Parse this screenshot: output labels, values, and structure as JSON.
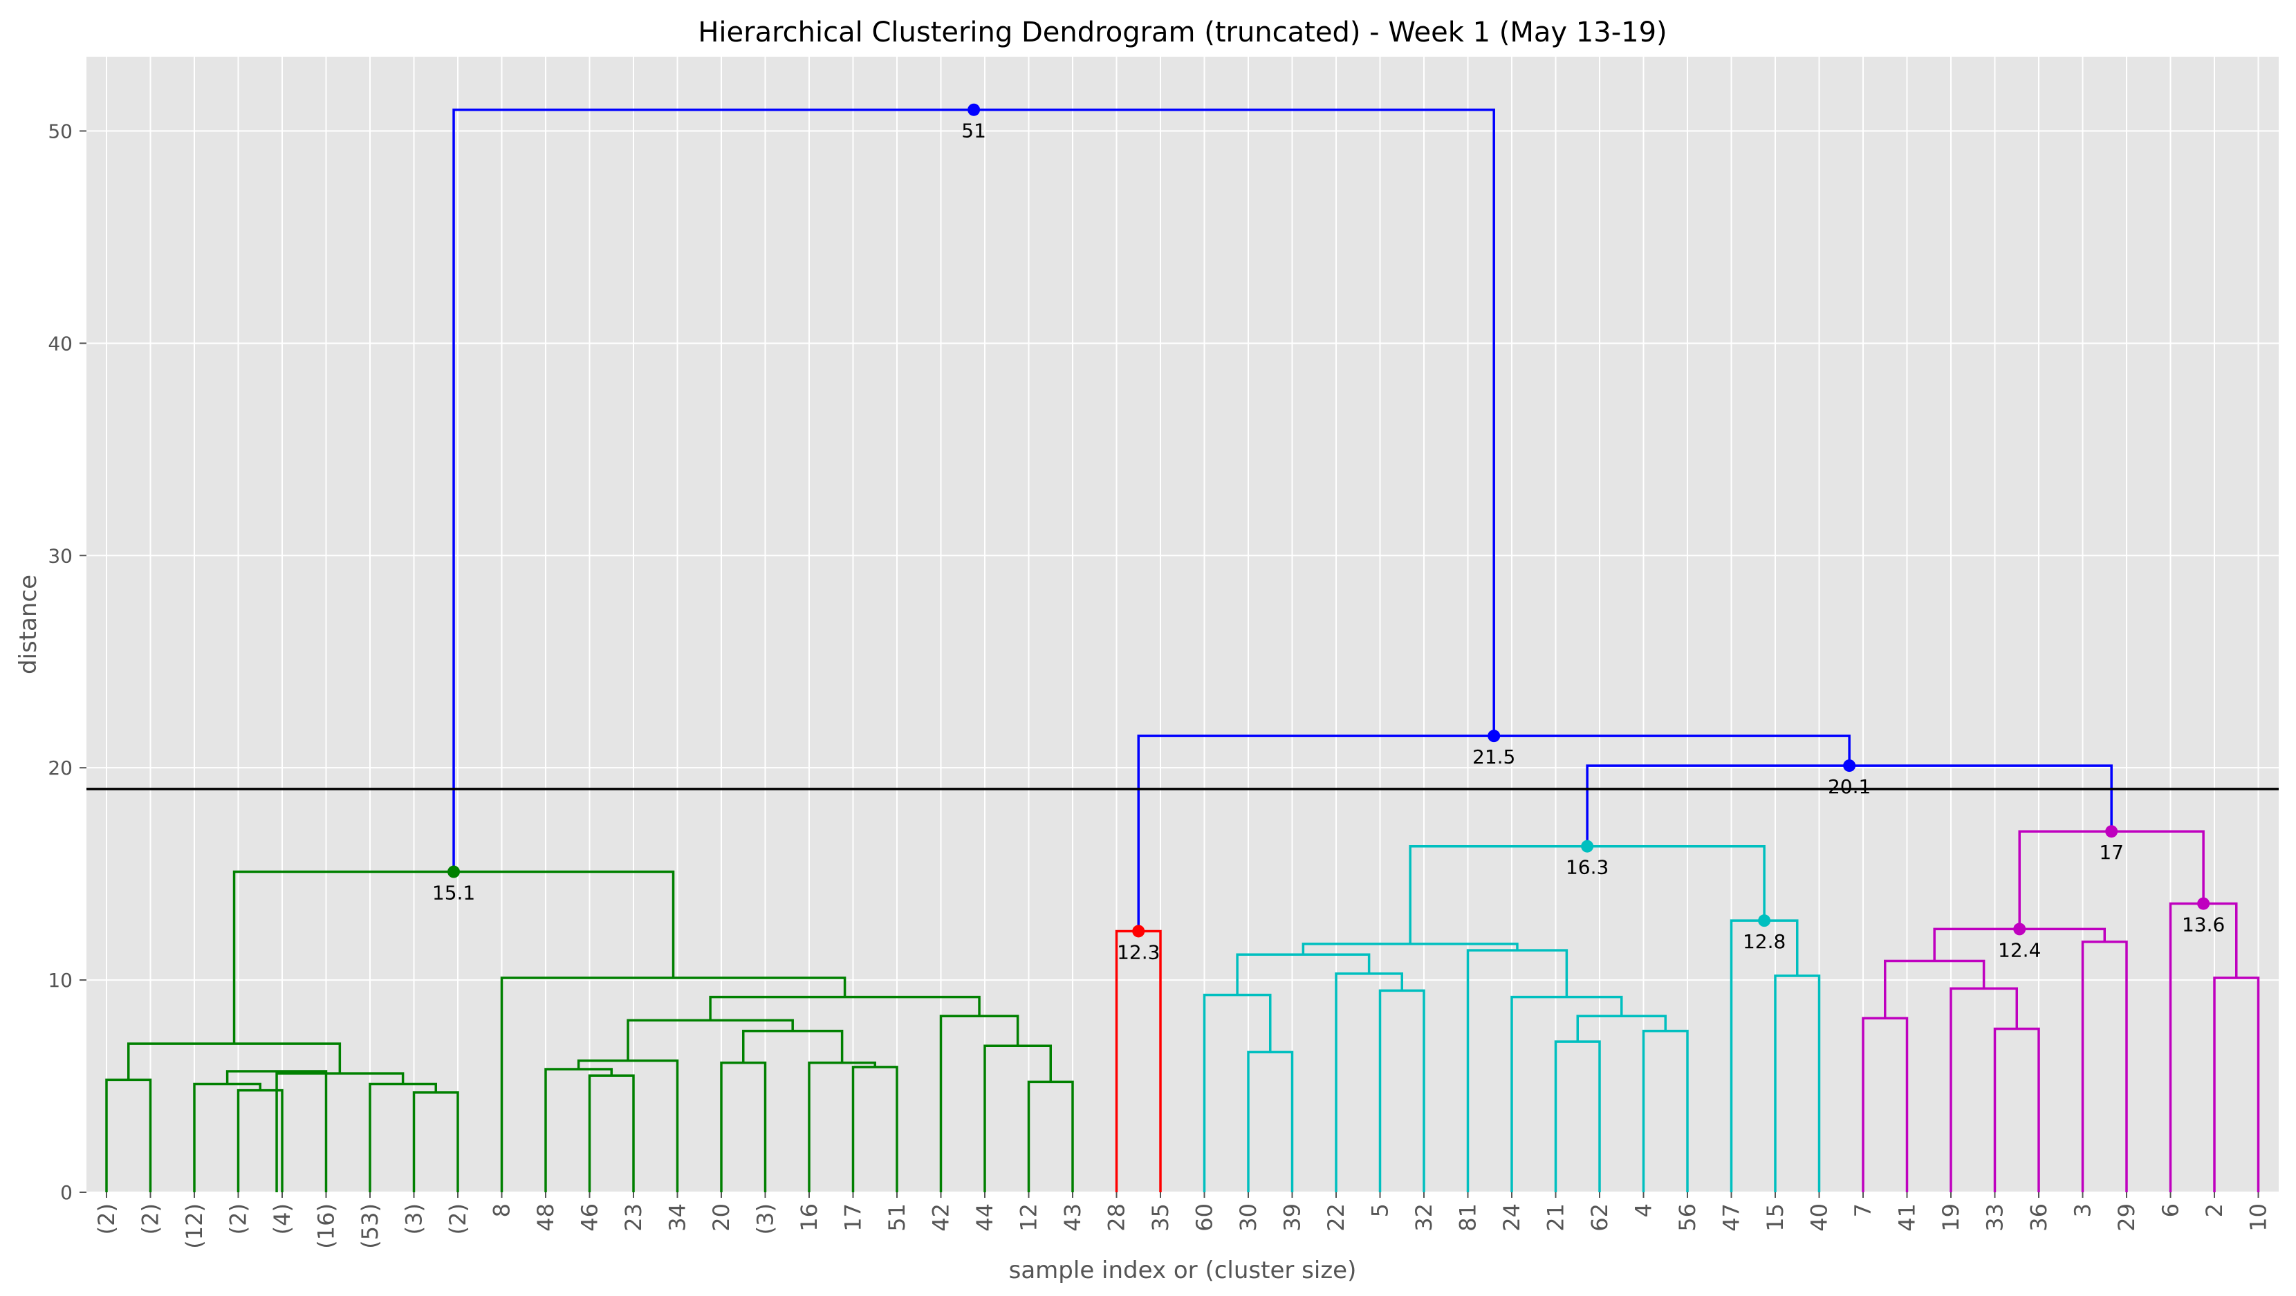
{
  "chart_data": {
    "type": "dendrogram",
    "title": "Hierarchical Clustering Dendrogram (truncated) - Week 1 (May 13-19)",
    "xlabel": "sample index or (cluster size)",
    "ylabel": "distance",
    "ylim": [
      0,
      53.5
    ],
    "yticks": [
      0,
      10,
      20,
      30,
      40,
      50
    ],
    "grid": true,
    "cut_line": 19,
    "leaves": [
      "(2)",
      "(2)",
      "(12)",
      "(2)",
      "(4)",
      "(16)",
      "(53)",
      "(3)",
      "(2)",
      "8",
      "48",
      "46",
      "23",
      "34",
      "20",
      "(3)",
      "16",
      "17",
      "51",
      "42",
      "44",
      "12",
      "43",
      "28",
      "35",
      "60",
      "30",
      "39",
      "22",
      "5",
      "32",
      "81",
      "24",
      "21",
      "62",
      "4",
      "56",
      "47",
      "15",
      "40",
      "7",
      "41",
      "19",
      "33",
      "36",
      "3",
      "29",
      "6",
      "2",
      "10"
    ],
    "links": [
      {
        "left": 0,
        "right": 1,
        "height": 5.3,
        "color": "#008000"
      },
      {
        "left": 3,
        "right": 4,
        "height": 4.8,
        "color": "#008000"
      },
      {
        "left": 2,
        "right": 3.5,
        "height": 5.1,
        "color": "#008000"
      },
      {
        "left": 2.75,
        "right": 5,
        "height": 5.7,
        "color": "#008000"
      },
      {
        "left": 7,
        "right": 8,
        "height": 4.7,
        "color": "#008000"
      },
      {
        "left": 6,
        "right": 7.5,
        "height": 5.1,
        "color": "#008000"
      },
      {
        "left": 3.875,
        "right": 6.75,
        "height": 5.6,
        "color": "#008000"
      },
      {
        "left": 0.5,
        "right": 5.3125,
        "height": 7.0,
        "color": "#008000"
      },
      {
        "left": 11,
        "right": 12,
        "height": 5.5,
        "color": "#008000"
      },
      {
        "left": 10,
        "right": 11.5,
        "height": 5.8,
        "color": "#008000"
      },
      {
        "left": 10.75,
        "right": 13,
        "height": 6.2,
        "color": "#008000"
      },
      {
        "left": 14,
        "right": 15,
        "height": 6.1,
        "color": "#008000"
      },
      {
        "left": 17,
        "right": 18,
        "height": 5.9,
        "color": "#008000"
      },
      {
        "left": 16,
        "right": 17.5,
        "height": 6.1,
        "color": "#008000"
      },
      {
        "left": 14.5,
        "right": 16.75,
        "height": 7.6,
        "color": "#008000"
      },
      {
        "left": 11.875,
        "right": 15.625,
        "height": 8.1,
        "color": "#008000"
      },
      {
        "left": 21,
        "right": 22,
        "height": 5.2,
        "color": "#008000"
      },
      {
        "left": 20,
        "right": 21.5,
        "height": 6.9,
        "color": "#008000"
      },
      {
        "left": 19,
        "right": 20.75,
        "height": 8.3,
        "color": "#008000"
      },
      {
        "left": 13.75,
        "right": 19.875,
        "height": 9.2,
        "color": "#008000"
      },
      {
        "left": 9,
        "right": 16.8125,
        "height": 10.1,
        "color": "#008000"
      },
      {
        "left": 2.90625,
        "right": 12.90625,
        "height": 15.1,
        "color": "#008000"
      },
      {
        "left": 23,
        "right": 24,
        "height": 12.3,
        "color": "#ff0000"
      },
      {
        "left": 26,
        "right": 27,
        "height": 6.6,
        "color": "#00bfbf"
      },
      {
        "left": 25,
        "right": 26.5,
        "height": 9.3,
        "color": "#00bfbf"
      },
      {
        "left": 29,
        "right": 30,
        "height": 9.5,
        "color": "#00bfbf"
      },
      {
        "left": 28,
        "right": 29.5,
        "height": 10.3,
        "color": "#00bfbf"
      },
      {
        "left": 25.75,
        "right": 28.75,
        "height": 11.2,
        "color": "#00bfbf"
      },
      {
        "left": 33,
        "right": 34,
        "height": 7.1,
        "color": "#00bfbf"
      },
      {
        "left": 35,
        "right": 36,
        "height": 7.6,
        "color": "#00bfbf"
      },
      {
        "left": 33.5,
        "right": 35.5,
        "height": 8.3,
        "color": "#00bfbf"
      },
      {
        "left": 32,
        "right": 34.5,
        "height": 9.2,
        "color": "#00bfbf"
      },
      {
        "left": 31,
        "right": 33.25,
        "height": 11.4,
        "color": "#00bfbf"
      },
      {
        "left": 27.25,
        "right": 32.125,
        "height": 11.7,
        "color": "#00bfbf"
      },
      {
        "left": 38,
        "right": 39,
        "height": 10.2,
        "color": "#00bfbf"
      },
      {
        "left": 37,
        "right": 38.5,
        "height": 12.8,
        "color": "#00bfbf"
      },
      {
        "left": 29.6875,
        "right": 37.75,
        "height": 16.3,
        "color": "#00bfbf"
      },
      {
        "left": 40,
        "right": 41,
        "height": 8.2,
        "color": "#bf00bf"
      },
      {
        "left": 43,
        "right": 44,
        "height": 7.7,
        "color": "#bf00bf"
      },
      {
        "left": 42,
        "right": 43.5,
        "height": 9.6,
        "color": "#bf00bf"
      },
      {
        "left": 40.5,
        "right": 42.75,
        "height": 10.9,
        "color": "#bf00bf"
      },
      {
        "left": 45,
        "right": 46,
        "height": 11.8,
        "color": "#bf00bf"
      },
      {
        "left": 41.625,
        "right": 45.5,
        "height": 12.4,
        "color": "#bf00bf"
      },
      {
        "left": 48,
        "right": 49,
        "height": 10.1,
        "color": "#bf00bf"
      },
      {
        "left": 47,
        "right": 48.5,
        "height": 13.6,
        "color": "#bf00bf"
      },
      {
        "left": 43.5625,
        "right": 47.75,
        "height": 17.0,
        "color": "#bf00bf"
      },
      {
        "left": 33.71875,
        "right": 45.65625,
        "height": 20.1,
        "color": "#0000ff"
      },
      {
        "left": 23.5,
        "right": 39.6875,
        "height": 21.5,
        "color": "#0000ff"
      },
      {
        "left": 7.90625,
        "right": 31.59375,
        "height": 51.0,
        "color": "#0000ff"
      }
    ],
    "annotations": [
      {
        "x": 7.90625,
        "height": 15.1,
        "label": "15.1",
        "color": "#008000"
      },
      {
        "x": 23.5,
        "height": 12.3,
        "label": "12.3",
        "color": "#ff0000"
      },
      {
        "x": 33.71875,
        "height": 16.3,
        "label": "16.3",
        "color": "#00bfbf"
      },
      {
        "x": 37.75,
        "height": 12.8,
        "label": "12.8",
        "color": "#00bfbf"
      },
      {
        "x": 43.5625,
        "height": 12.4,
        "label": "12.4",
        "color": "#bf00bf"
      },
      {
        "x": 47.75,
        "height": 13.6,
        "label": "13.6",
        "color": "#bf00bf"
      },
      {
        "x": 45.65625,
        "height": 17.0,
        "label": "17",
        "color": "#bf00bf"
      },
      {
        "x": 39.6875,
        "height": 20.1,
        "label": "20.1",
        "color": "#0000ff"
      },
      {
        "x": 31.59375,
        "height": 21.5,
        "label": "21.5",
        "color": "#0000ff"
      },
      {
        "x": 19.75,
        "height": 51.0,
        "label": "51",
        "color": "#0000ff"
      }
    ],
    "colors": {
      "background": "#e5e5e5",
      "grid": "#ffffff",
      "cut_line": "#000000"
    }
  }
}
